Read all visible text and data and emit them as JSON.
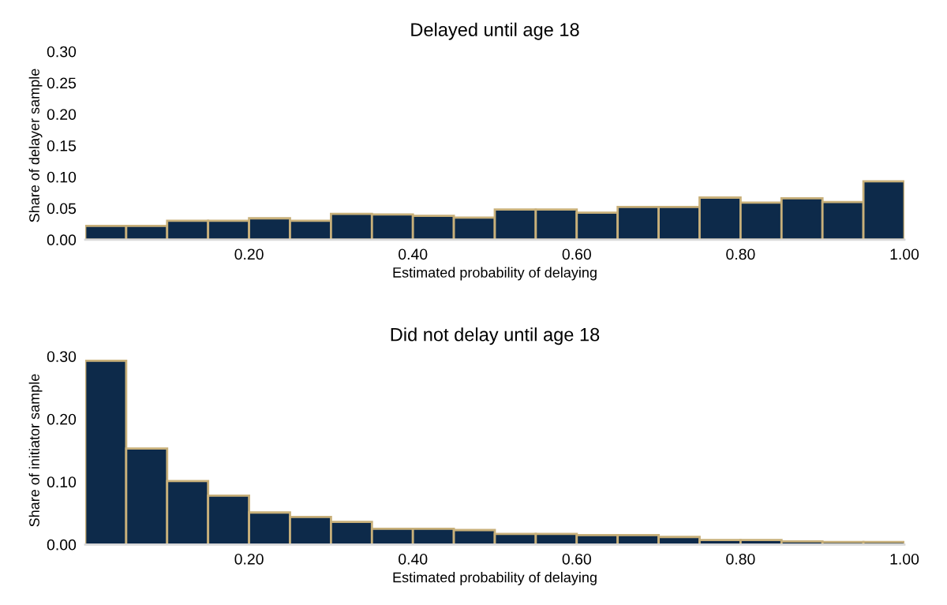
{
  "chart_data": [
    {
      "type": "histogram",
      "title": "Delayed until age 18",
      "xlabel": "Estimated probability of delaying",
      "ylabel": "Share of delayer sample",
      "bins": [
        0,
        0.05,
        0.1,
        0.15,
        0.2,
        0.25,
        0.3,
        0.35,
        0.4,
        0.45,
        0.5,
        0.55,
        0.6,
        0.65,
        0.7,
        0.75,
        0.8,
        0.85,
        0.9,
        0.95,
        1.0
      ],
      "values": [
        0.022,
        0.022,
        0.03,
        0.03,
        0.034,
        0.03,
        0.041,
        0.04,
        0.038,
        0.035,
        0.048,
        0.048,
        0.043,
        0.052,
        0.052,
        0.067,
        0.059,
        0.066,
        0.06,
        0.093
      ],
      "color": "#0d2a4a",
      "xlim": [
        0,
        1.0
      ],
      "ylim": [
        0,
        0.3
      ],
      "xticks": [
        {
          "value": 0.2,
          "label": "0.20"
        },
        {
          "value": 0.4,
          "label": "0.40"
        },
        {
          "value": 0.6,
          "label": "0.60"
        },
        {
          "value": 0.8,
          "label": "0.80"
        },
        {
          "value": 1.0,
          "label": "1.00"
        }
      ],
      "yticks": [
        {
          "value": 0,
          "label": "0.00"
        },
        {
          "value": 0.05,
          "label": "0.05"
        },
        {
          "value": 0.1,
          "label": "0.10"
        },
        {
          "value": 0.15,
          "label": "0.15"
        },
        {
          "value": 0.2,
          "label": "0.20"
        },
        {
          "value": 0.25,
          "label": "0.25"
        },
        {
          "value": 0.3,
          "label": "0.30"
        }
      ],
      "grid": false,
      "legend": false
    },
    {
      "type": "histogram",
      "title": "Did not delay until age 18",
      "xlabel": "Estimated probability of delaying",
      "ylabel": "Share of initiator sample",
      "bins": [
        0,
        0.05,
        0.1,
        0.15,
        0.2,
        0.25,
        0.3,
        0.35,
        0.4,
        0.45,
        0.5,
        0.55,
        0.6,
        0.65,
        0.7,
        0.75,
        0.8,
        0.85,
        0.9,
        0.95,
        1.0
      ],
      "values": [
        0.293,
        0.153,
        0.101,
        0.078,
        0.051,
        0.044,
        0.036,
        0.025,
        0.025,
        0.023,
        0.017,
        0.017,
        0.015,
        0.015,
        0.012,
        0.007,
        0.007,
        0.005,
        0.004,
        0.004
      ],
      "color": "#0d2a4a",
      "xlim": [
        0,
        1.0
      ],
      "ylim": [
        0,
        0.3
      ],
      "xticks": [
        {
          "value": 0.2,
          "label": "0.20"
        },
        {
          "value": 0.4,
          "label": "0.40"
        },
        {
          "value": 0.6,
          "label": "0.60"
        },
        {
          "value": 0.8,
          "label": "0.80"
        },
        {
          "value": 1.0,
          "label": "1.00"
        }
      ],
      "yticks": [
        {
          "value": 0,
          "label": "0.00"
        },
        {
          "value": 0.1,
          "label": "0.10"
        },
        {
          "value": 0.2,
          "label": "0.20"
        },
        {
          "value": 0.3,
          "label": "0.30"
        }
      ],
      "grid": false,
      "legend": false
    }
  ]
}
